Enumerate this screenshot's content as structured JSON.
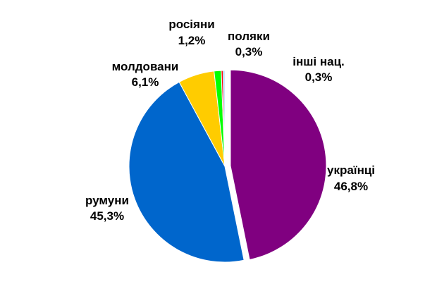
{
  "chart_data": {
    "type": "pie",
    "title": "",
    "slices": [
      {
        "name": "українці",
        "value": 46.8,
        "value_label": "46,8%",
        "color": "#800080",
        "exploded": true
      },
      {
        "name": "румуни",
        "value": 45.3,
        "value_label": "45,3%",
        "color": "#0066cc",
        "exploded": false
      },
      {
        "name": "молдовани",
        "value": 6.1,
        "value_label": "6,1%",
        "color": "#ffcc00",
        "exploded": false
      },
      {
        "name": "росіяни",
        "value": 1.2,
        "value_label": "1,2%",
        "color": "#00ff00",
        "exploded": false
      },
      {
        "name": "поляки",
        "value": 0.3,
        "value_label": "0,3%",
        "color": "#ff0000",
        "exploded": false
      },
      {
        "name": "інші нац.",
        "value": 0.3,
        "value_label": "0,3%",
        "color": "#99ccff",
        "exploded": false
      }
    ],
    "start_angle_deg": 0,
    "direction": "clockwise",
    "legend": "none"
  }
}
